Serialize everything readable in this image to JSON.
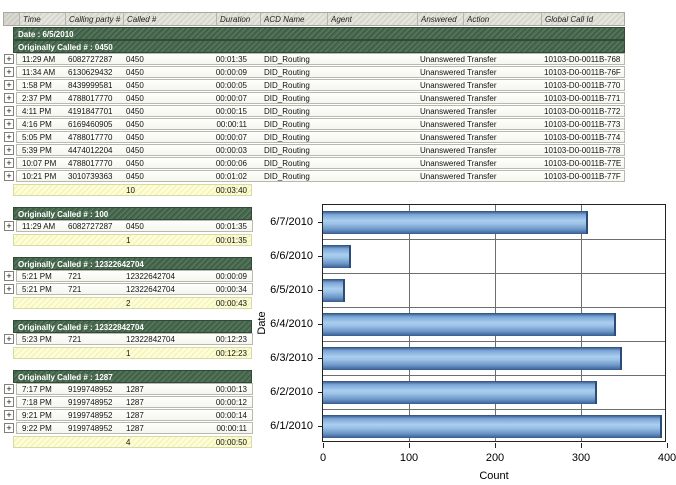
{
  "table": {
    "columns": [
      "",
      "Time",
      "Calling party #",
      "Called #",
      "Duration",
      "ACD Name",
      "Agent",
      "Answered",
      "Action",
      "Global Call Id"
    ],
    "date_header": "Date : 6/5/2010",
    "groups": [
      {
        "header": "Originally Called # : 0450",
        "wide": true,
        "rows": [
          {
            "time": "11:29 AM",
            "calling": "6082727287",
            "called": "0450",
            "duration": "00:01:35",
            "acd": "DID_Routing",
            "agent": "",
            "answered": "Unanswered",
            "action": "Transfer",
            "gcid": "10103-D0-0011B-768"
          },
          {
            "time": "11:34 AM",
            "calling": "6130629432",
            "called": "0450",
            "duration": "00:00:09",
            "acd": "DID_Routing",
            "agent": "",
            "answered": "Unanswered",
            "action": "Transfer",
            "gcid": "10103-D0-0011B-76F"
          },
          {
            "time": "1:58 PM",
            "calling": "8439999581",
            "called": "0450",
            "duration": "00:00:05",
            "acd": "DID_Routing",
            "agent": "",
            "answered": "Unanswered",
            "action": "Transfer",
            "gcid": "10103-D0-0011B-770"
          },
          {
            "time": "2:37 PM",
            "calling": "4788017770",
            "called": "0450",
            "duration": "00:00:07",
            "acd": "DID_Routing",
            "agent": "",
            "answered": "Unanswered",
            "action": "Transfer",
            "gcid": "10103-D0-0011B-771"
          },
          {
            "time": "4:11 PM",
            "calling": "4191847701",
            "called": "0450",
            "duration": "00:00:15",
            "acd": "DID_Routing",
            "agent": "",
            "answered": "Unanswered",
            "action": "Transfer",
            "gcid": "10103-D0-0011B-772"
          },
          {
            "time": "4:16 PM",
            "calling": "6169460905",
            "called": "0450",
            "duration": "00:00:11",
            "acd": "DID_Routing",
            "agent": "",
            "answered": "Unanswered",
            "action": "Transfer",
            "gcid": "10103-D0-0011B-773"
          },
          {
            "time": "5:05 PM",
            "calling": "4788017770",
            "called": "0450",
            "duration": "00:00:07",
            "acd": "DID_Routing",
            "agent": "",
            "answered": "Unanswered",
            "action": "Transfer",
            "gcid": "10103-D0-0011B-774"
          },
          {
            "time": "5:39 PM",
            "calling": "4474012204",
            "called": "0450",
            "duration": "00:00:03",
            "acd": "DID_Routing",
            "agent": "",
            "answered": "Unanswered",
            "action": "Transfer",
            "gcid": "10103-D0-0011B-778"
          },
          {
            "time": "10:07 PM",
            "calling": "4788017770",
            "called": "0450",
            "duration": "00:00:06",
            "acd": "DID_Routing",
            "agent": "",
            "answered": "Unanswered",
            "action": "Transfer",
            "gcid": "10103-D0-0011B-77E"
          },
          {
            "time": "10:21 PM",
            "calling": "3010739363",
            "called": "0450",
            "duration": "00:01:02",
            "acd": "DID_Routing",
            "agent": "",
            "answered": "Unanswered",
            "action": "Transfer",
            "gcid": "10103-D0-0011B-77F"
          }
        ],
        "summary": {
          "count": "10",
          "duration": "00:03:40"
        }
      },
      {
        "header": "Originally Called # : 100",
        "wide": false,
        "rows": [
          {
            "time": "11:29 AM",
            "calling": "6082727287",
            "called": "0450",
            "duration": "00:01:35"
          }
        ],
        "summary": {
          "count": "1",
          "duration": "00:01:35"
        }
      },
      {
        "header": "Originally Called # : 12322642704",
        "wide": false,
        "rows": [
          {
            "time": "5:21 PM",
            "calling": "721",
            "called": "12322642704",
            "duration": "00:00:09"
          },
          {
            "time": "5:21 PM",
            "calling": "721",
            "called": "12322642704",
            "duration": "00:00:34"
          }
        ],
        "summary": {
          "count": "2",
          "duration": "00:00:43"
        }
      },
      {
        "header": "Originally Called # : 12322842704",
        "wide": false,
        "rows": [
          {
            "time": "5:23 PM",
            "calling": "721",
            "called": "12322842704",
            "duration": "00:12:23"
          }
        ],
        "summary": {
          "count": "1",
          "duration": "00:12:23"
        }
      },
      {
        "header": "Originally Called # : 1287",
        "wide": false,
        "rows": [
          {
            "time": "7:17 PM",
            "calling": "9199748952",
            "called": "1287",
            "duration": "00:00:13"
          },
          {
            "time": "7:18 PM",
            "calling": "9199748952",
            "called": "1287",
            "duration": "00:00:12"
          },
          {
            "time": "9:21 PM",
            "calling": "9199748952",
            "called": "1287",
            "duration": "00:00:14"
          },
          {
            "time": "9:22 PM",
            "calling": "9199748952",
            "called": "1287",
            "duration": "00:00:11"
          }
        ],
        "summary": {
          "count": "4",
          "duration": "00:00:50"
        }
      }
    ]
  },
  "chart_data": {
    "type": "bar",
    "orientation": "horizontal",
    "title": "",
    "categories": [
      "6/7/2010",
      "6/6/2010",
      "6/5/2010",
      "6/4/2010",
      "6/3/2010",
      "6/2/2010",
      "6/1/2010"
    ],
    "values": [
      308,
      32,
      26,
      341,
      348,
      319,
      394
    ],
    "xlabel": "Count",
    "ylabel": "Date",
    "xlim": [
      0,
      400
    ],
    "xticks": [
      0,
      100,
      200,
      300,
      400
    ],
    "grid": true,
    "legend": false,
    "bar_color": "#7ba6d9"
  }
}
